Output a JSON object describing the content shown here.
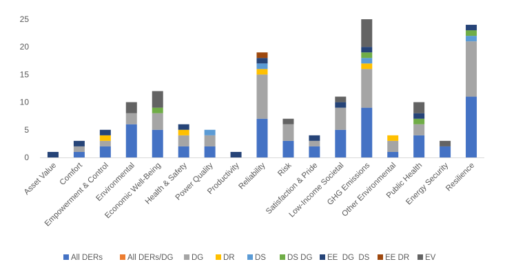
{
  "chart_data": {
    "type": "bar",
    "stacked": true,
    "title": "",
    "xlabel": "",
    "ylabel": "",
    "ylim": [
      0,
      25
    ],
    "yticks": [
      0,
      5,
      10,
      15,
      20,
      25
    ],
    "grid": false,
    "legend_position": "bottom",
    "categories": [
      "Asset Value",
      "Comfort",
      "Empowerment & Control",
      "Environmental",
      "Economic Well-Being",
      "Health & Safety",
      "Power Quality",
      "Productivity",
      "Reliability",
      "Risk",
      "Satisfaction & Pride",
      "Low-Income Societal",
      "GHG Emissions",
      "Other Environmental",
      "Public Health",
      "Energy Security",
      "Resilience"
    ],
    "series": [
      {
        "name": "All DERs",
        "color": "#4472C4",
        "values": [
          0,
          1,
          2,
          6,
          5,
          2,
          2,
          0,
          7,
          3,
          2,
          5,
          9,
          1,
          4,
          2,
          11
        ]
      },
      {
        "name": "All DERs/DG",
        "color": "#ED7D31",
        "values": [
          0,
          0,
          0,
          0,
          0,
          0,
          0,
          0,
          0,
          0,
          0,
          0,
          0,
          0,
          0,
          0,
          0
        ]
      },
      {
        "name": "DG",
        "color": "#A5A5A5",
        "values": [
          0,
          1,
          1,
          2,
          3,
          2,
          2,
          0,
          8,
          3,
          1,
          4,
          7,
          2,
          2,
          0,
          10
        ]
      },
      {
        "name": "DR",
        "color": "#FFC000",
        "values": [
          0,
          0,
          1,
          0,
          0,
          1,
          0,
          0,
          1,
          0,
          0,
          0,
          1,
          1,
          0,
          0,
          0
        ]
      },
      {
        "name": "DS",
        "color": "#5B9BD5",
        "values": [
          0,
          0,
          0,
          0,
          0,
          0,
          1,
          0,
          1,
          0,
          0,
          0,
          1,
          0,
          0,
          0,
          1
        ]
      },
      {
        "name": "DS DG",
        "color": "#70AD47",
        "values": [
          0,
          0,
          0,
          0,
          1,
          0,
          0,
          0,
          0,
          0,
          0,
          0,
          1,
          0,
          1,
          0,
          1
        ]
      },
      {
        "name": "EE  DG  DS",
        "color": "#264478",
        "values": [
          1,
          1,
          1,
          0,
          0,
          1,
          0,
          1,
          1,
          0,
          1,
          1,
          1,
          0,
          1,
          0,
          1
        ]
      },
      {
        "name": "EE DR",
        "color": "#9E480E",
        "values": [
          0,
          0,
          0,
          0,
          0,
          0,
          0,
          0,
          1,
          0,
          0,
          0,
          0,
          0,
          0,
          0,
          0
        ]
      },
      {
        "name": "EV",
        "color": "#636363",
        "values": [
          0,
          0,
          0,
          2,
          3,
          0,
          0,
          0,
          0,
          1,
          0,
          1,
          5,
          0,
          2,
          1,
          0
        ]
      }
    ]
  }
}
